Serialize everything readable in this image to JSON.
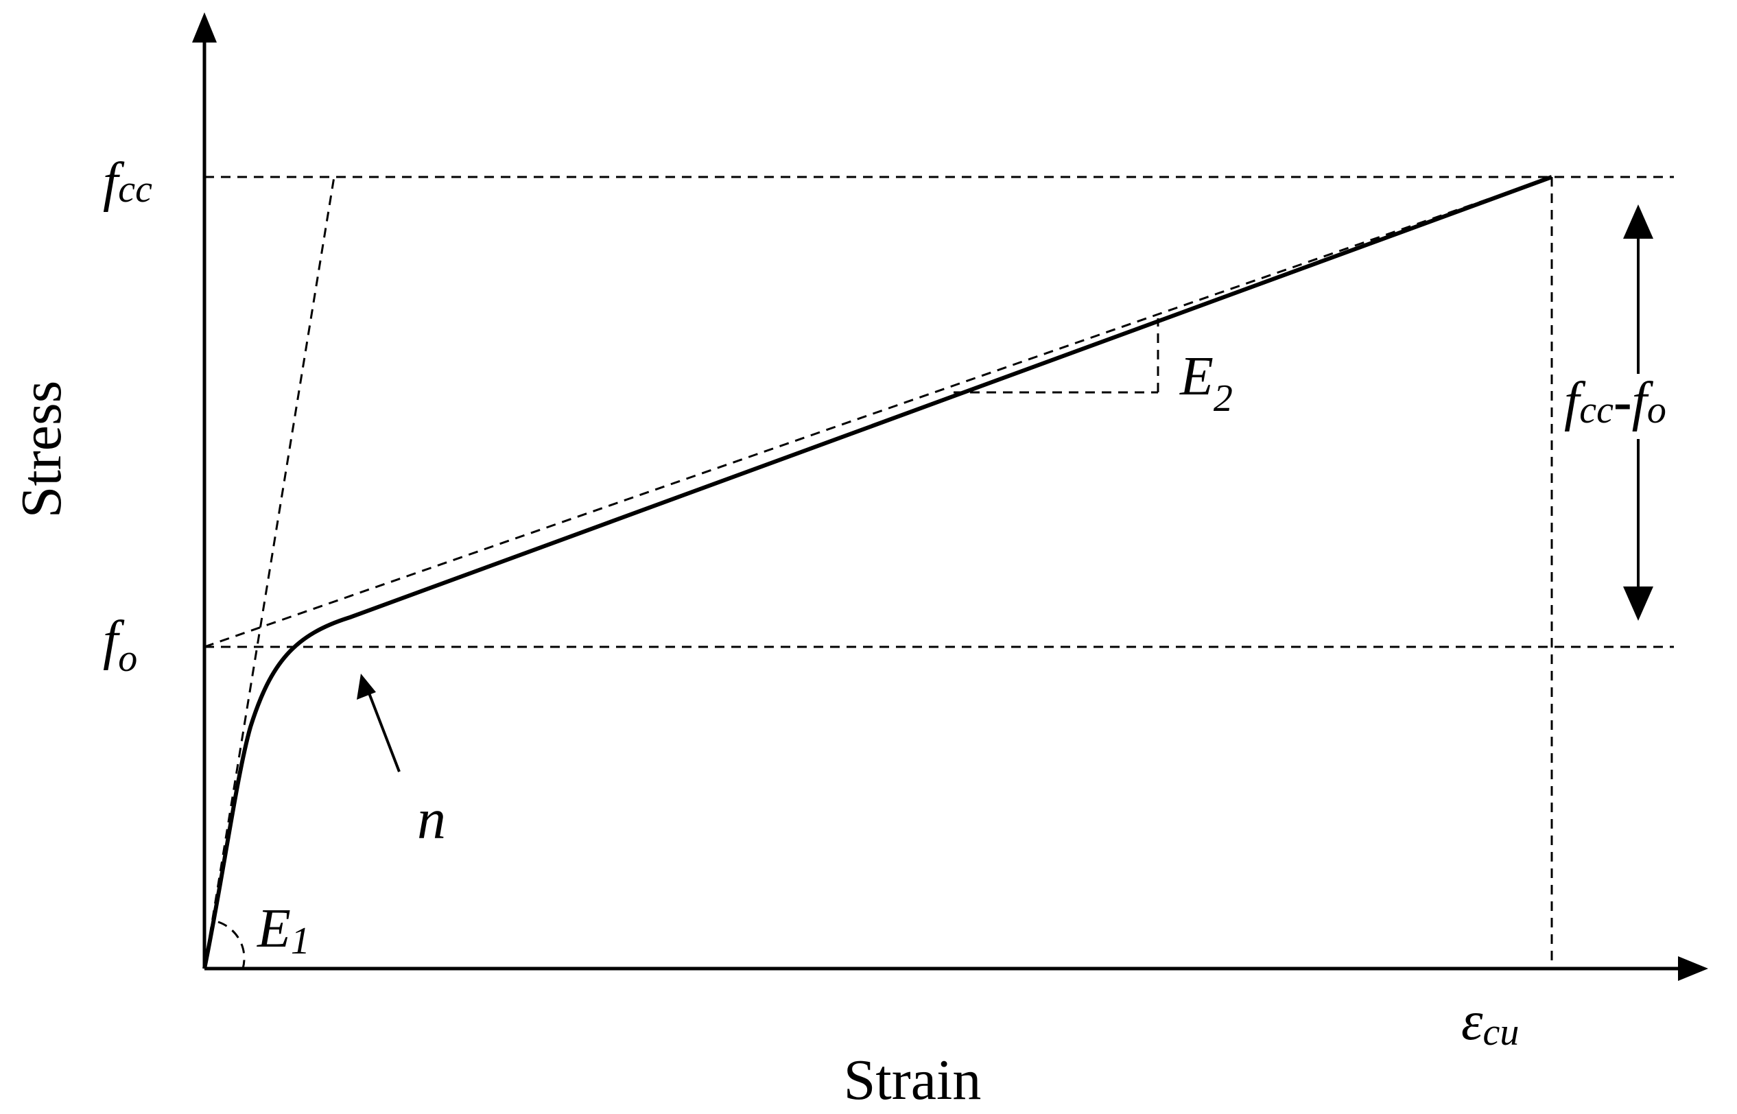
{
  "axes": {
    "x_label": "Strain",
    "y_label": "Stress"
  },
  "labels": {
    "fcc": {
      "base": "f",
      "sub": "cc"
    },
    "fo": {
      "base": "f",
      "sub": "o"
    },
    "ecu": {
      "base": "ε",
      "sub": "cu"
    },
    "e1": {
      "base": "E",
      "sub": "1"
    },
    "e2": {
      "base": "E",
      "sub": "2"
    },
    "n": "n",
    "diff": {
      "a_base": "f",
      "a_sub": "cc",
      "sep": "-",
      "b_base": "f",
      "b_sub": "o"
    }
  },
  "style": {
    "line_color": "#000000",
    "background": "#ffffff"
  }
}
